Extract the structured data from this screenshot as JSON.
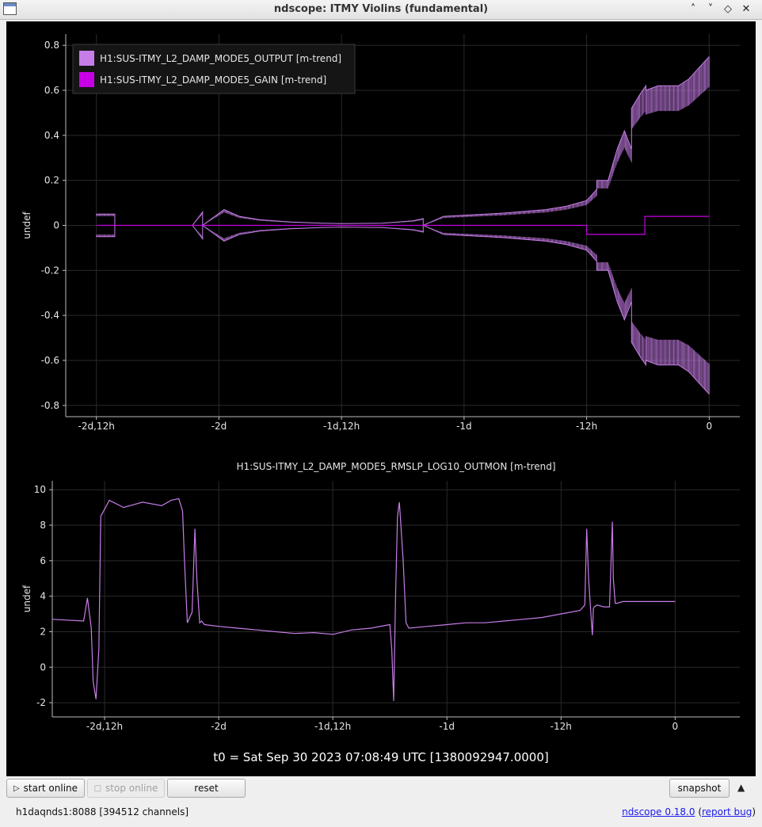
{
  "window": {
    "title": "ndscope: ITMY Violins (fundamental)",
    "buttons": [
      "˄",
      "˅",
      "◇",
      "✕"
    ]
  },
  "plot_top": {
    "legend": [
      {
        "name": "H1:SUS-ITMY_L2_DAMP_MODE5_OUTPUT [m-trend]",
        "color": "#c77de8"
      },
      {
        "name": "H1:SUS-ITMY_L2_DAMP_MODE5_GAIN [m-trend]",
        "color": "#c800e6"
      }
    ],
    "ylabel": "undef",
    "yticks": [
      "0.8",
      "0.6",
      "0.4",
      "0.2",
      "0",
      "-0.2",
      "-0.4",
      "-0.6",
      "-0.8"
    ],
    "xticks": [
      "-2d,12h",
      "-2d",
      "-1d,12h",
      "-1d",
      "-12h",
      "0"
    ]
  },
  "plot_bottom": {
    "title": "H1:SUS-ITMY_L2_DAMP_MODE5_RMSLP_LOG10_OUTMON [m-trend]",
    "ylabel": "undef",
    "yticks": [
      "10",
      "8",
      "6",
      "4",
      "2",
      "0",
      "-2"
    ],
    "xticks": [
      "-2d,12h",
      "-2d",
      "-1d,12h",
      "-1d",
      "-12h",
      "0"
    ]
  },
  "t0_text": "t0 = Sat Sep 30 2023 07:08:49 UTC [1380092947.0000]",
  "toolbar": {
    "start_online": "start online",
    "stop_online": "stop online",
    "reset": "reset",
    "snapshot": "snapshot"
  },
  "status": {
    "server": "h1daqnds1:8088  [394512 channels]",
    "version_link": "ndscope 0.18.0",
    "open_paren": " (",
    "report_bug": "report bug",
    "close_paren": ")"
  },
  "chart_data": [
    {
      "type": "line",
      "title": "",
      "xlabel": "",
      "ylabel": "undef",
      "x_unit": "hours relative to t0",
      "xlim": [
        -63,
        3
      ],
      "ylim": [
        -0.85,
        0.85
      ],
      "grid": true,
      "legend_position": "top-left",
      "series": [
        {
          "name": "H1:SUS-ITMY_L2_DAMP_MODE5_OUTPUT [m-trend]",
          "kind": "envelope",
          "x": [
            -60,
            -58.2,
            -58.2,
            -50.6,
            -49.6,
            -49.6,
            -47.5,
            -46,
            -44,
            -41,
            -38,
            -36,
            -32,
            -29,
            -28,
            -28,
            -26,
            -24,
            -20,
            -16,
            -14,
            -12,
            -11,
            -11,
            -9.9,
            -9,
            -8.3,
            -7.6,
            -7.6,
            -6.8,
            -6.2,
            -6.2,
            -5,
            -3,
            -2,
            -1,
            0
          ],
          "upper": [
            0.05,
            0.05,
            0.0,
            0.0,
            0.06,
            0.0,
            0.07,
            0.04,
            0.025,
            0.015,
            0.01,
            0.008,
            0.01,
            0.02,
            0.03,
            0.0,
            0.04,
            0.045,
            0.055,
            0.07,
            0.085,
            0.11,
            0.16,
            0.2,
            0.2,
            0.34,
            0.42,
            0.34,
            0.52,
            0.58,
            0.62,
            0.6,
            0.62,
            0.62,
            0.65,
            0.7,
            0.75
          ],
          "lower": [
            -0.05,
            -0.05,
            0.0,
            0.0,
            -0.06,
            0.0,
            -0.07,
            -0.04,
            -0.025,
            -0.015,
            -0.01,
            -0.008,
            -0.01,
            -0.02,
            -0.03,
            0.0,
            -0.04,
            -0.045,
            -0.055,
            -0.07,
            -0.085,
            -0.11,
            -0.16,
            -0.2,
            -0.2,
            -0.34,
            -0.42,
            -0.34,
            -0.52,
            -0.58,
            -0.62,
            -0.6,
            -0.62,
            -0.62,
            -0.65,
            -0.7,
            -0.75
          ]
        },
        {
          "name": "H1:SUS-ITMY_L2_DAMP_MODE5_GAIN [m-trend]",
          "x": [
            -60,
            -12,
            -12,
            -9,
            -9,
            -6.3,
            -6.3,
            -4,
            -4,
            0
          ],
          "y": [
            0,
            0,
            -0.04,
            -0.04,
            -0.04,
            -0.04,
            0.04,
            0.04,
            0.04,
            0.04
          ]
        }
      ]
    },
    {
      "type": "line",
      "title": "H1:SUS-ITMY_L2_DAMP_MODE5_RMSLP_LOG10_OUTMON [m-trend]",
      "xlabel": "",
      "ylabel": "undef",
      "x_unit": "hours relative to t0",
      "xlim": [
        -65.5,
        6.8
      ],
      "ylim": [
        -2.8,
        10.5
      ],
      "grid": true,
      "series": [
        {
          "name": "H1:SUS-ITMY_L2_DAMP_MODE5_RMSLP_LOG10_OUTMON [m-trend]",
          "x": [
            -65.5,
            -62.2,
            -61.8,
            -61.4,
            -61.2,
            -60.9,
            -60.6,
            -60.4,
            -59.5,
            -58,
            -56,
            -54,
            -53,
            -52.2,
            -51.8,
            -51.6,
            -51.3,
            -50.8,
            -50.5,
            -50.3,
            -50,
            -49.8,
            -49.5,
            -48,
            -46,
            -44,
            -42,
            -40,
            -38,
            -36,
            -34,
            -32,
            -30,
            -29.8,
            -29.6,
            -29.4,
            -29.2,
            -29,
            -28.6,
            -28.3,
            -28,
            -26,
            -24,
            -22,
            -20,
            -16,
            -14,
            -12,
            -10,
            -9.5,
            -9.3,
            -9.1,
            -8.8,
            -8.7,
            -8.6,
            -8.5,
            -8.2,
            -7.5,
            -6.9,
            -6.6,
            -6.5,
            -6.3,
            -6.1,
            -5.5,
            -4,
            0
          ],
          "y": [
            2.7,
            2.6,
            3.9,
            2.2,
            -0.8,
            -1.8,
            1.0,
            8.5,
            9.4,
            9.0,
            9.3,
            9.1,
            9.4,
            9.5,
            8.8,
            6.0,
            2.5,
            3.1,
            7.8,
            5.0,
            2.5,
            2.6,
            2.4,
            2.3,
            2.2,
            2.1,
            2.0,
            1.9,
            1.95,
            1.85,
            2.1,
            2.2,
            2.4,
            1.0,
            -1.9,
            4.0,
            8.5,
            9.3,
            6.0,
            2.5,
            2.2,
            2.3,
            2.4,
            2.5,
            2.5,
            2.7,
            2.8,
            3.0,
            3.2,
            3.5,
            7.8,
            5.0,
            2.5,
            1.8,
            3.3,
            3.4,
            3.5,
            3.4,
            3.4,
            8.2,
            5.0,
            3.6,
            3.6,
            3.7,
            3.7,
            3.7
          ]
        }
      ]
    }
  ]
}
